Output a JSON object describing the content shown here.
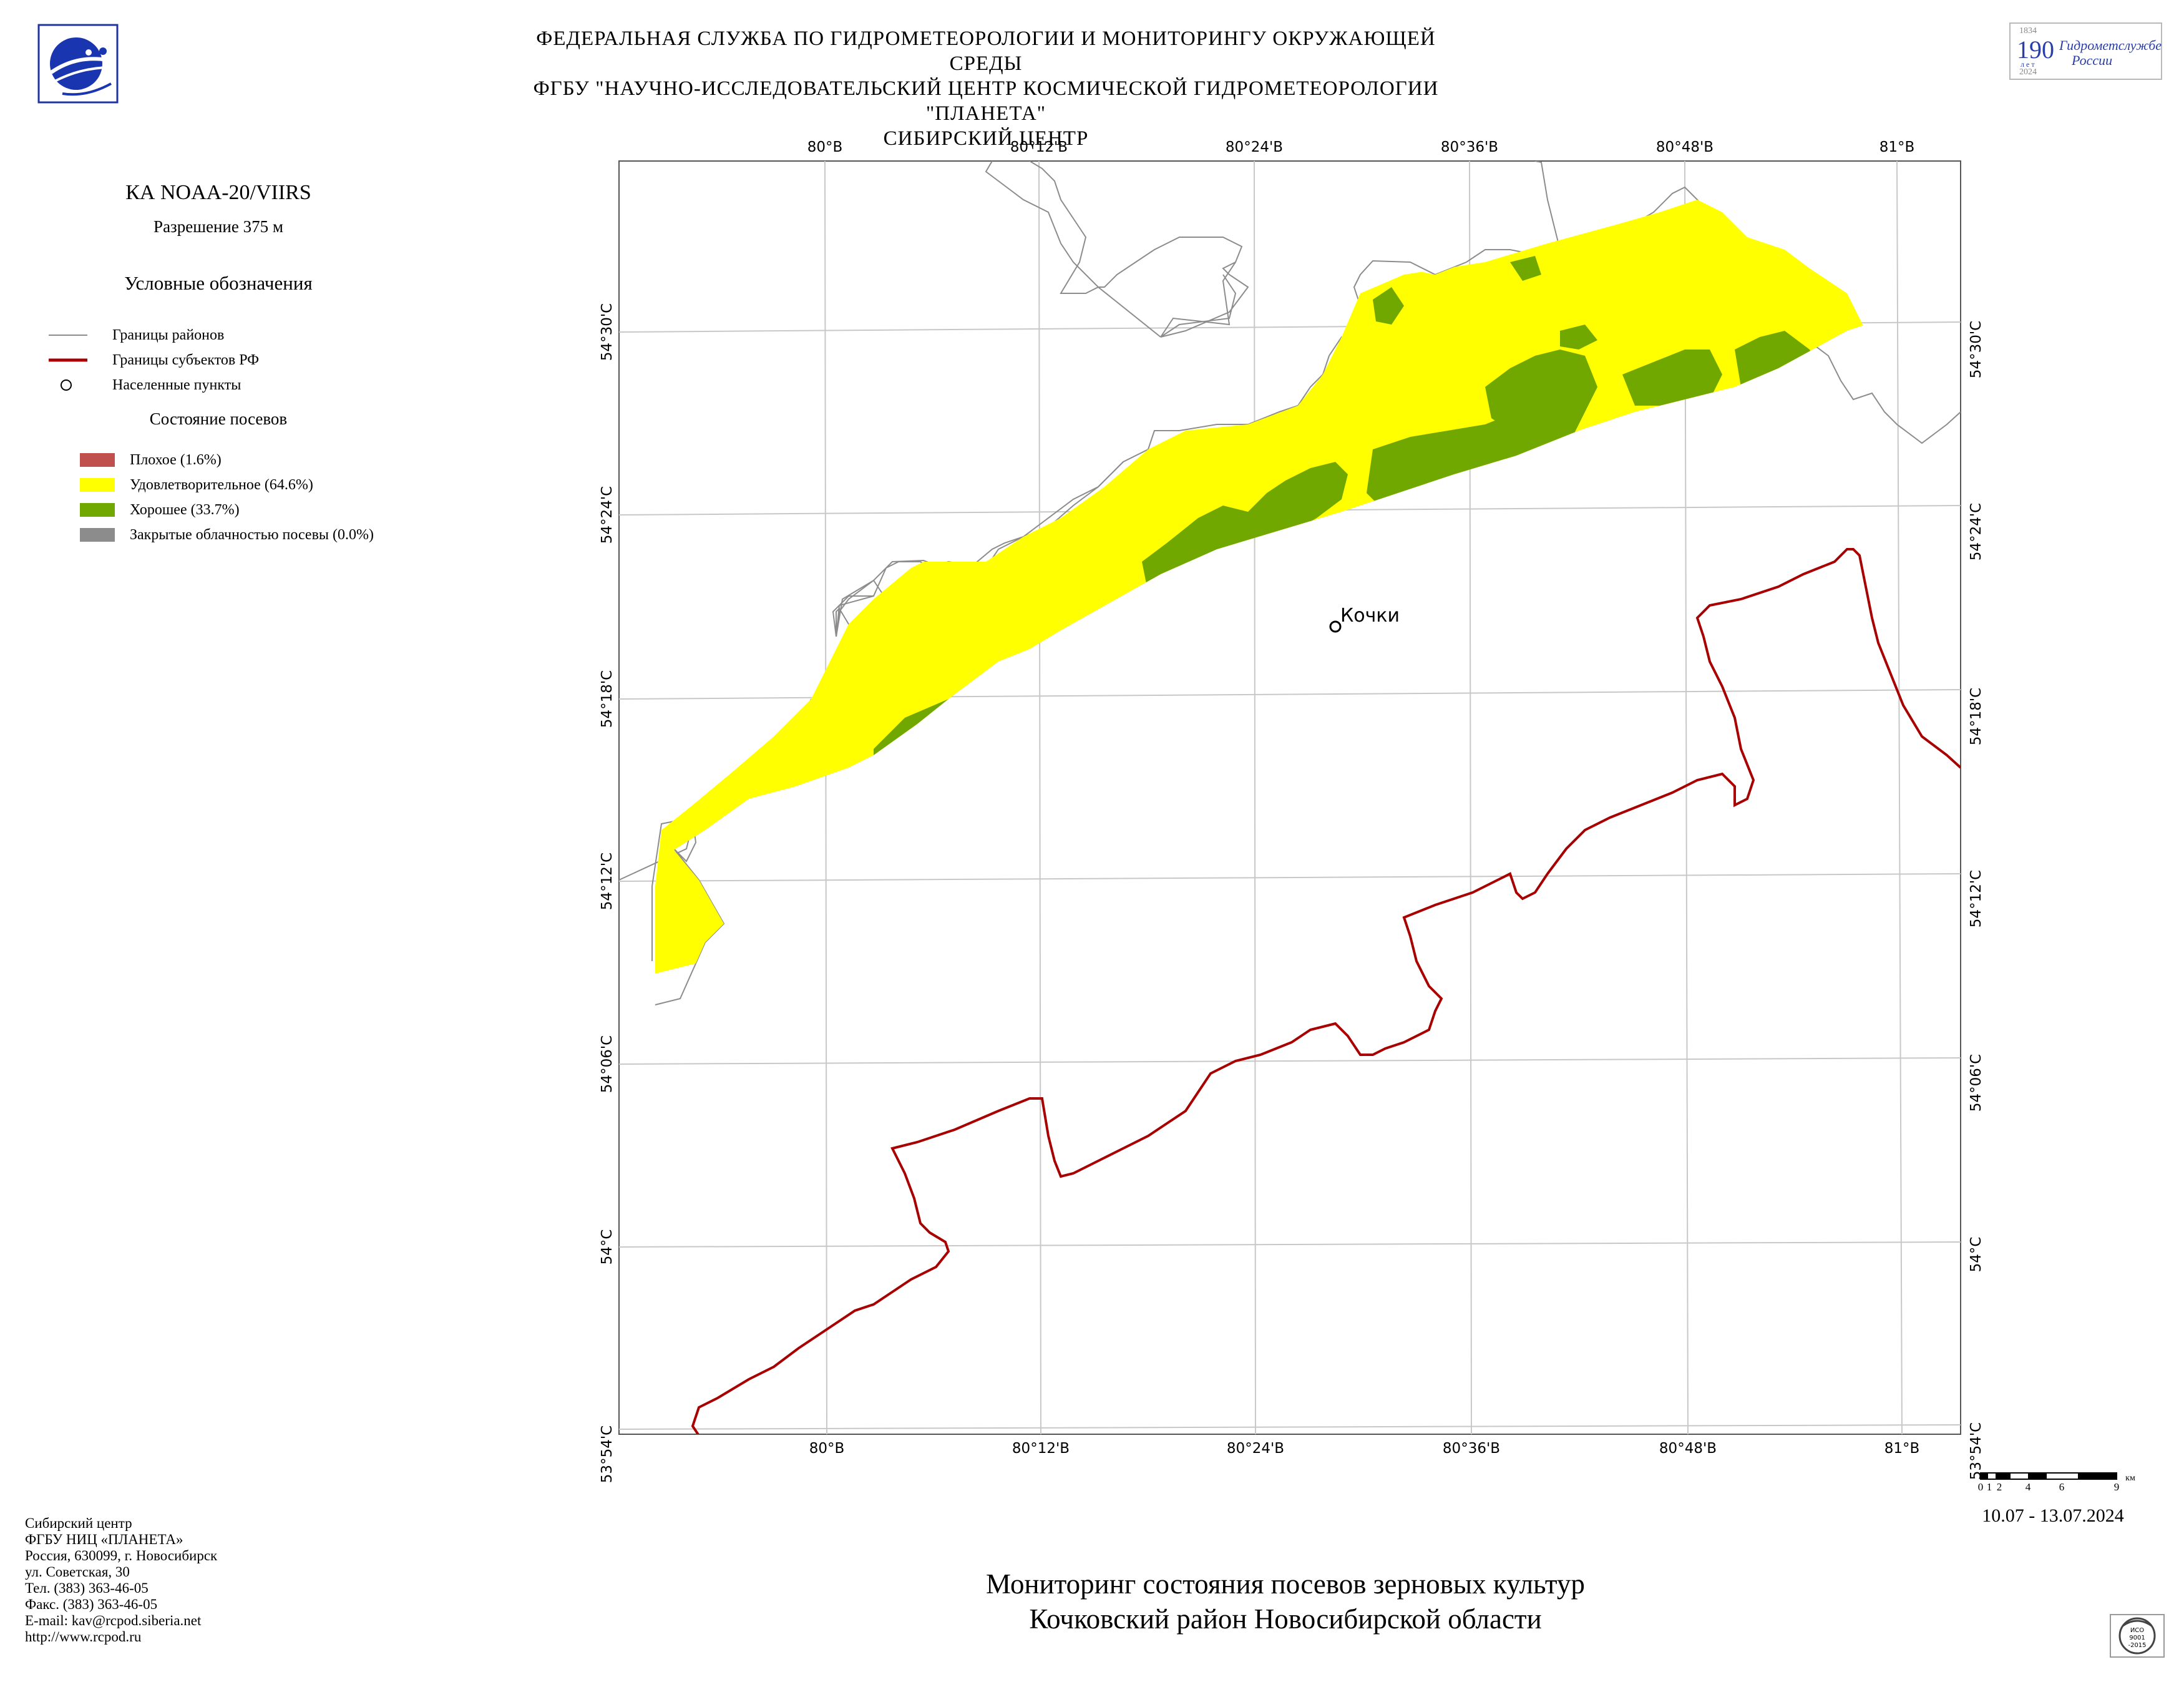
{
  "header": {
    "line1": "ФЕДЕРАЛЬНАЯ СЛУЖБА ПО ГИДРОМЕТЕОРОЛОГИИ И МОНИТОРИНГУ ОКРУЖАЮЩЕЙ СРЕДЫ",
    "line2": "ФГБУ \"НАУЧНО-ИССЛЕДОВАТЕЛЬСКИЙ ЦЕНТР КОСМИЧЕСКОЙ ГИДРОМЕТЕОРОЛОГИИ \"ПЛАНЕТА\"",
    "line3": "СИБИРСКИЙ ЦЕНТР"
  },
  "logos": {
    "left": "planeta-logo-icon",
    "right": {
      "icon": "anniversary-190-logo-icon",
      "year_start": "1834",
      "number": "190",
      "unit": "л е т",
      "year_end": "2024",
      "line1": "Гидрометслужбе",
      "line2": "России"
    },
    "iso": {
      "icon": "iso-certificate-icon",
      "line1": "ИСО",
      "line2": "9001",
      "line3": "-2015"
    }
  },
  "legend": {
    "satellite": "КА NOAA-20/VIIRS",
    "resolution": "Разрешение 375 м",
    "title": "Условные обозначения",
    "boundaries": [
      {
        "label": "Границы районов",
        "color": "#8c8c8c"
      },
      {
        "label": "Границы субъектов РФ",
        "color": "#a80000"
      },
      {
        "label": "Населенные пункты",
        "color": "#000000"
      }
    ],
    "crop_title": "Состояние посевов",
    "classes": [
      {
        "label": "Плохое (1.6%)",
        "color": "#c0504d"
      },
      {
        "label": "Удовлетворительное (64.6%)",
        "color": "#ffff00"
      },
      {
        "label": "Хорошее (33.7%)",
        "color": "#70a800"
      },
      {
        "label": "Закрытые облачностью посевы (0.0%)",
        "color": "#8c8c8c"
      }
    ]
  },
  "map": {
    "settlement": "Кочки",
    "lon_top": [
      "80°В",
      "80°12'В",
      "80°24'В",
      "80°36'В",
      "80°48'В",
      "81°В"
    ],
    "lon_bottom": [
      "80°В",
      "80°12'В",
      "80°24'В",
      "80°36'В",
      "80°48'В",
      "81°В"
    ],
    "lat_left": [
      "54°30'С",
      "54°24'С",
      "54°18'С",
      "54°12'С",
      "54°06'С",
      "54°С",
      "53°54'С"
    ],
    "lat_right": [
      "54°30'С",
      "54°24'С",
      "54°18'С",
      "54°12'С",
      "54°06'С",
      "54°С",
      "53°54'С"
    ]
  },
  "scale_bar": {
    "ticks": [
      "0",
      "1",
      "2",
      "4",
      "6",
      "9"
    ],
    "unit": "км"
  },
  "date_range": "10.07 - 13.07.2024",
  "contacts": [
    "Сибирский центр",
    "ФГБУ НИЦ «ПЛАНЕТА»",
    "Россия, 630099, г. Новосибирск",
    "ул. Советская, 30",
    "Тел. (383) 363-46-05",
    "Факс. (383) 363-46-05",
    "E-mail: kav@rcpod.siberia.net",
    "http://www.rcpod.ru"
  ],
  "footer": {
    "line1": "Мониторинг состояния посевов зерновых культур",
    "line2": "Кочковский район Новосибирской области"
  }
}
